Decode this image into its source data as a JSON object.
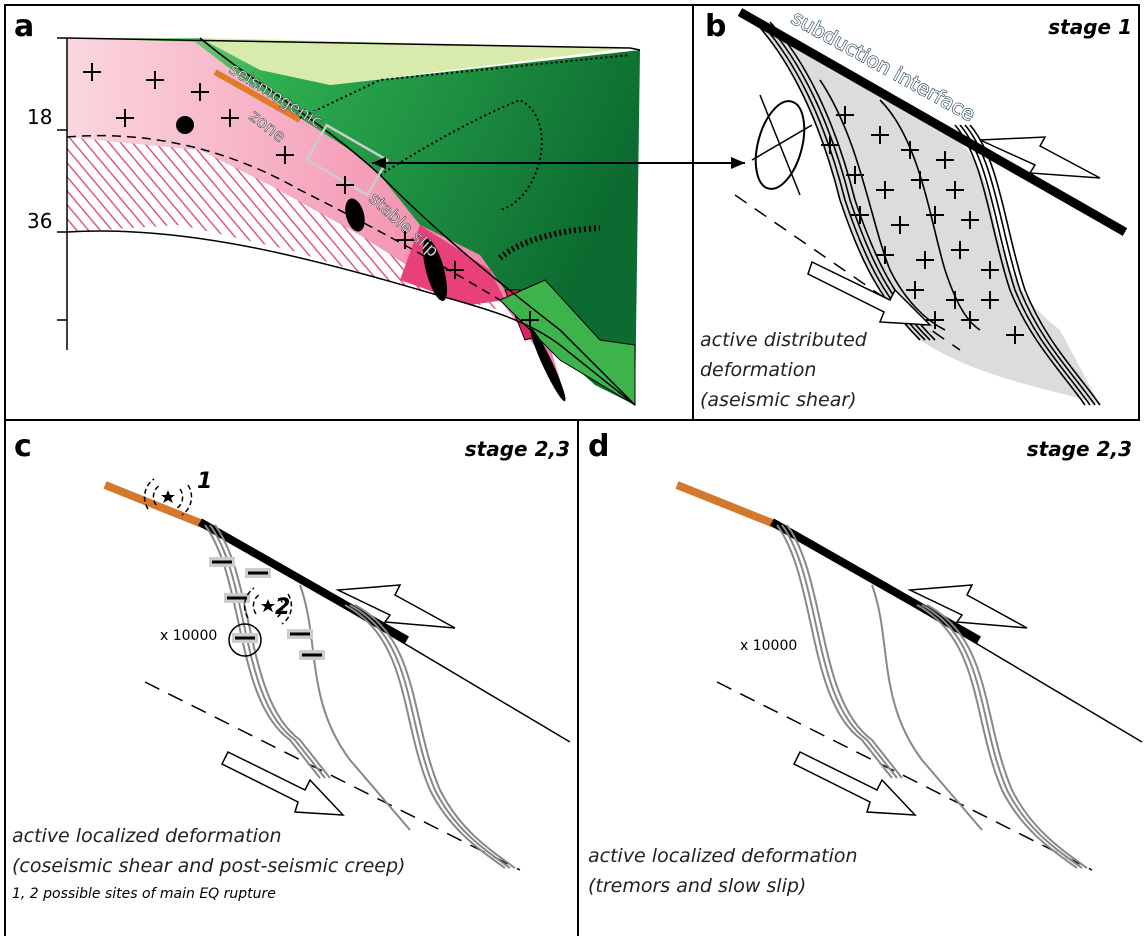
{
  "panels": [
    {
      "letter": "a",
      "depth_labels": [
        "18",
        "36"
      ],
      "labels": [
        "seismogenic",
        "zone",
        "stable slip"
      ]
    },
    {
      "letter": "b",
      "stage": "stage 1",
      "interface": "subduction interface",
      "caption": [
        "active distributed",
        "deformation",
        "(aseismic shear)"
      ]
    },
    {
      "letter": "c",
      "stage": "stage 2,3",
      "sites": [
        "1",
        "2"
      ],
      "scale": "x 10000",
      "caption": [
        "active localized deformation",
        "(coseismic shear and post-seismic creep)"
      ],
      "note": "1, 2 possible sites of main EQ rupture"
    },
    {
      "letter": "d",
      "stage": "stage 2,3",
      "scale": "x 10000",
      "caption": [
        "active localized deformation",
        "(tremors and slow slip)"
      ]
    }
  ]
}
